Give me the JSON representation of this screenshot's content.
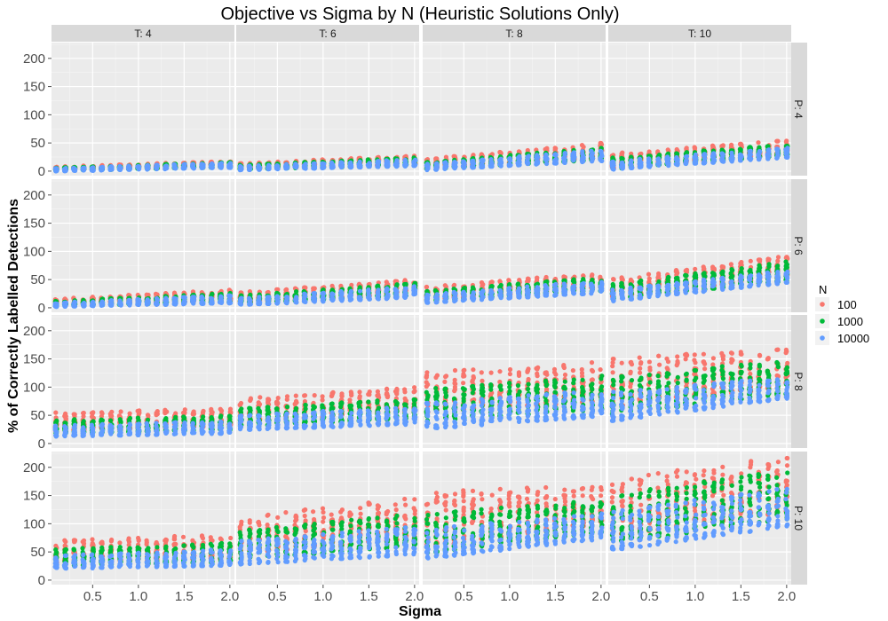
{
  "chart_data": {
    "type": "scatter",
    "title": "Objective vs Sigma by N (Heuristic Solutions Only)",
    "xlabel": "Sigma",
    "ylabel": "% of Correctly Labelled Detections",
    "x_ticks": [
      0.5,
      1.0,
      1.5,
      2.0
    ],
    "x_tick_labels": [
      "0.5",
      "1.0",
      "1.5",
      "2.0"
    ],
    "y_ticks": [
      0,
      50,
      100,
      150,
      200
    ],
    "y_tick_labels": [
      "0",
      "50",
      "100",
      "150",
      "200"
    ],
    "xlim": [
      0.05,
      2.05
    ],
    "ylim": [
      -8,
      228
    ],
    "grid": true,
    "facet_cols": [
      "T: 4",
      "T: 6",
      "T: 8",
      "T: 10"
    ],
    "facet_rows": [
      "P: 4",
      "P: 6",
      "P: 8",
      "P: 10"
    ],
    "legend": {
      "title": "N",
      "position": "right",
      "entries": [
        {
          "name": "100",
          "color": "#F8766D"
        },
        {
          "name": "1000",
          "color": "#00BA38"
        },
        {
          "name": "10000",
          "color": "#619CFF"
        }
      ]
    },
    "sigma_values": [
      0.1,
      0.2,
      0.3,
      0.4,
      0.5,
      0.6,
      0.7,
      0.8,
      0.9,
      1.0,
      1.1,
      1.2,
      1.3,
      1.4,
      1.5,
      1.6,
      1.7,
      1.8,
      1.9,
      2.0
    ],
    "series_ranges_note": "Approximate y-range per panel and N at sigma=0.1 and sigma=2.0: [min, max]",
    "panels": [
      {
        "T": "T: 4",
        "P": "P: 4",
        "N100": {
          "start": [
            2,
            8
          ],
          "end": [
            8,
            18
          ]
        },
        "N1000": {
          "start": [
            1,
            6
          ],
          "end": [
            7,
            16
          ]
        },
        "N10000": {
          "start": [
            0,
            5
          ],
          "end": [
            6,
            15
          ]
        }
      },
      {
        "T": "T: 6",
        "P": "P: 4",
        "N100": {
          "start": [
            4,
            14
          ],
          "end": [
            12,
            28
          ]
        },
        "N1000": {
          "start": [
            3,
            11
          ],
          "end": [
            10,
            24
          ]
        },
        "N10000": {
          "start": [
            2,
            9
          ],
          "end": [
            9,
            21
          ]
        }
      },
      {
        "T": "T: 8",
        "P": "P: 4",
        "N100": {
          "start": [
            5,
            22
          ],
          "end": [
            22,
            50
          ]
        },
        "N1000": {
          "start": [
            4,
            16
          ],
          "end": [
            20,
            42
          ]
        },
        "N10000": {
          "start": [
            2,
            13
          ],
          "end": [
            18,
            38
          ]
        }
      },
      {
        "T": "T: 10",
        "P": "P: 4",
        "N100": {
          "start": [
            5,
            32
          ],
          "end": [
            30,
            55
          ]
        },
        "N1000": {
          "start": [
            4,
            24
          ],
          "end": [
            28,
            48
          ]
        },
        "N10000": {
          "start": [
            3,
            18
          ],
          "end": [
            24,
            42
          ]
        }
      },
      {
        "T": "T: 4",
        "P": "P: 6",
        "N100": {
          "start": [
            5,
            16
          ],
          "end": [
            12,
            32
          ]
        },
        "N1000": {
          "start": [
            3,
            12
          ],
          "end": [
            10,
            26
          ]
        },
        "N10000": {
          "start": [
            2,
            9
          ],
          "end": [
            8,
            22
          ]
        }
      },
      {
        "T": "T: 6",
        "P": "P: 6",
        "N100": {
          "start": [
            10,
            28
          ],
          "end": [
            25,
            50
          ]
        },
        "N1000": {
          "start": [
            8,
            22
          ],
          "end": [
            22,
            44
          ]
        },
        "N10000": {
          "start": [
            5,
            17
          ],
          "end": [
            18,
            38
          ]
        }
      },
      {
        "T": "T: 8",
        "P": "P: 6",
        "N100": {
          "start": [
            14,
            38
          ],
          "end": [
            35,
            62
          ]
        },
        "N1000": {
          "start": [
            12,
            30
          ],
          "end": [
            30,
            55
          ]
        },
        "N10000": {
          "start": [
            9,
            24
          ],
          "end": [
            26,
            48
          ]
        }
      },
      {
        "T": "T: 10",
        "P": "P: 6",
        "N100": {
          "start": [
            18,
            52
          ],
          "end": [
            55,
            92
          ]
        },
        "N1000": {
          "start": [
            15,
            42
          ],
          "end": [
            48,
            82
          ]
        },
        "N10000": {
          "start": [
            12,
            32
          ],
          "end": [
            44,
            66
          ]
        }
      },
      {
        "T": "T: 4",
        "P": "P: 8",
        "N100": {
          "start": [
            22,
            55
          ],
          "end": [
            30,
            62
          ]
        },
        "N1000": {
          "start": [
            18,
            42
          ],
          "end": [
            24,
            50
          ]
        },
        "N10000": {
          "start": [
            12,
            32
          ],
          "end": [
            18,
            40
          ]
        }
      },
      {
        "T": "T: 6",
        "P": "P: 8",
        "N100": {
          "start": [
            38,
            80
          ],
          "end": [
            55,
            100
          ]
        },
        "N1000": {
          "start": [
            30,
            62
          ],
          "end": [
            45,
            80
          ]
        },
        "N10000": {
          "start": [
            24,
            50
          ],
          "end": [
            34,
            66
          ]
        }
      },
      {
        "T": "T: 8",
        "P": "P: 8",
        "N100": {
          "start": [
            55,
            128
          ],
          "end": [
            75,
            145
          ]
        },
        "N1000": {
          "start": [
            40,
            98
          ],
          "end": [
            60,
            120
          ]
        },
        "N10000": {
          "start": [
            26,
            72
          ],
          "end": [
            48,
            95
          ]
        }
      },
      {
        "T": "T: 10",
        "P": "P: 8",
        "N100": {
          "start": [
            65,
            152
          ],
          "end": [
            100,
            168
          ]
        },
        "N1000": {
          "start": [
            52,
            118
          ],
          "end": [
            88,
            148
          ]
        },
        "N10000": {
          "start": [
            40,
            92
          ],
          "end": [
            80,
            118
          ]
        }
      },
      {
        "T": "T: 4",
        "P": "P: 10",
        "N100": {
          "start": [
            30,
            70
          ],
          "end": [
            38,
            82
          ]
        },
        "N1000": {
          "start": [
            25,
            55
          ],
          "end": [
            32,
            66
          ]
        },
        "N10000": {
          "start": [
            20,
            44
          ],
          "end": [
            26,
            55
          ]
        }
      },
      {
        "T": "T: 6",
        "P": "P: 10",
        "N100": {
          "start": [
            48,
            112
          ],
          "end": [
            70,
            148
          ]
        },
        "N1000": {
          "start": [
            38,
            88
          ],
          "end": [
            58,
            118
          ]
        },
        "N10000": {
          "start": [
            28,
            70
          ],
          "end": [
            45,
            95
          ]
        }
      },
      {
        "T": "T: 8",
        "P": "P: 10",
        "N100": {
          "start": [
            58,
            158
          ],
          "end": [
            100,
            168
          ]
        },
        "N1000": {
          "start": [
            48,
            118
          ],
          "end": [
            85,
            142
          ]
        },
        "N10000": {
          "start": [
            38,
            92
          ],
          "end": [
            72,
            118
          ]
        }
      },
      {
        "T": "T: 10",
        "P": "P: 10",
        "N100": {
          "start": [
            78,
            180
          ],
          "end": [
            120,
            220
          ]
        },
        "N1000": {
          "start": [
            65,
            152
          ],
          "end": [
            108,
            195
          ]
        },
        "N10000": {
          "start": [
            52,
            122
          ],
          "end": [
            95,
            165
          ]
        }
      }
    ]
  }
}
